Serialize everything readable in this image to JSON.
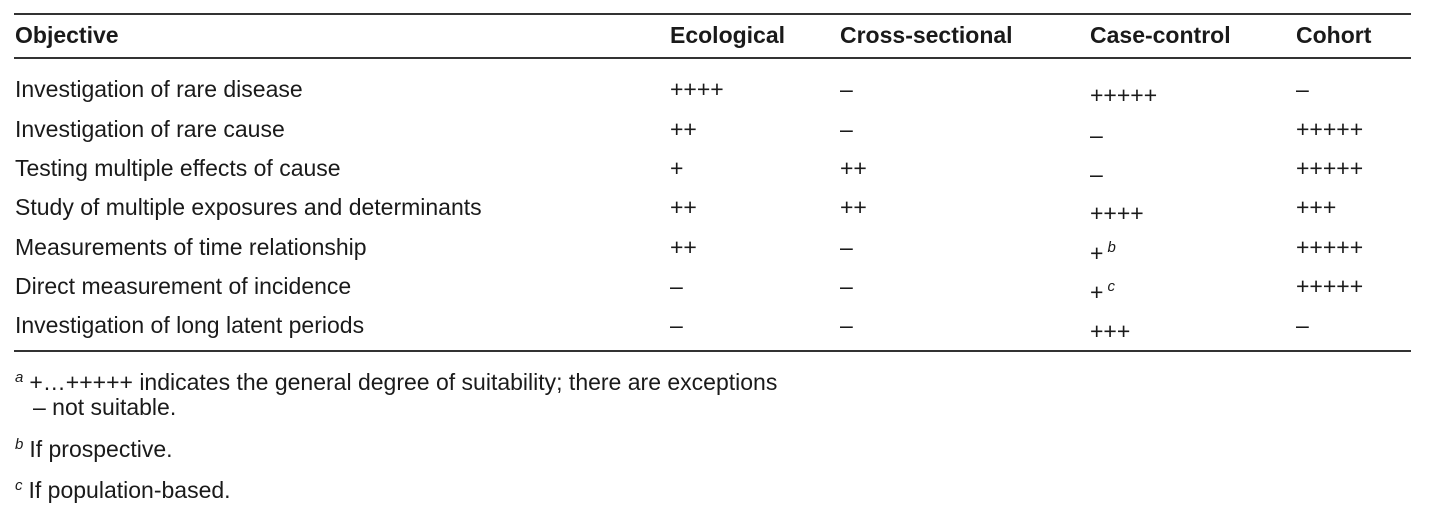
{
  "table": {
    "headers": [
      "Objective",
      "Ecological",
      "Cross-sectional",
      "Case-control",
      "Cohort"
    ],
    "rows": [
      {
        "objective": "Investigation of rare disease",
        "ecological": "++++",
        "cross_sectional": "–",
        "case_control": "+++++",
        "case_control_note": "",
        "cohort": "–"
      },
      {
        "objective": "Investigation of rare cause",
        "ecological": "++",
        "cross_sectional": "–",
        "case_control": "–",
        "case_control_note": "",
        "cohort": "+++++"
      },
      {
        "objective": "Testing multiple effects of cause",
        "ecological": "+",
        "cross_sectional": "++",
        "case_control": "–",
        "case_control_note": "",
        "cohort": "+++++"
      },
      {
        "objective": "Study of multiple exposures and determinants",
        "ecological": "++",
        "cross_sectional": "++",
        "case_control": "++++",
        "case_control_note": "",
        "cohort": "+++"
      },
      {
        "objective": "Measurements of time relationship",
        "ecological": "++",
        "cross_sectional": "–",
        "case_control": "+",
        "case_control_note": "b",
        "cohort": "+++++"
      },
      {
        "objective": "Direct measurement of incidence",
        "ecological": "–",
        "cross_sectional": "–",
        "case_control": "+",
        "case_control_note": "c",
        "cohort": "+++++"
      },
      {
        "objective": "Investigation of long latent periods",
        "ecological": "–",
        "cross_sectional": "–",
        "case_control": "+++",
        "case_control_note": "",
        "cohort": "–"
      }
    ]
  },
  "footnotes": [
    {
      "marker": "a",
      "text": "+…+++++ indicates the general degree of suitability; there are exceptions",
      "continuation": "– not suitable."
    },
    {
      "marker": "b",
      "text": "If prospective."
    },
    {
      "marker": "c",
      "text": "If population-based."
    }
  ]
}
